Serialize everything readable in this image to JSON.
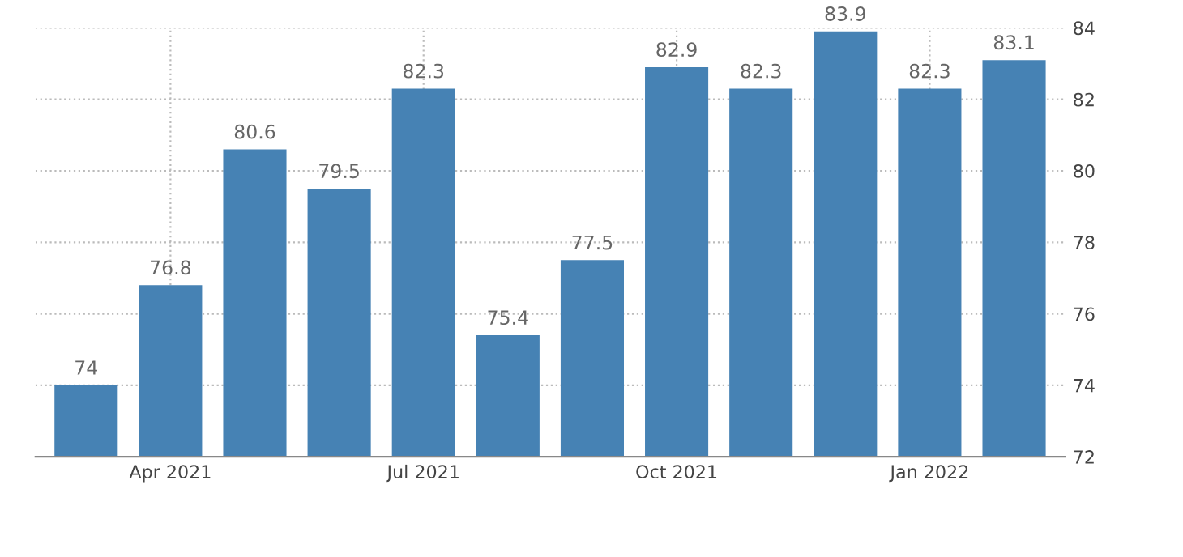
{
  "chart_data": {
    "type": "bar",
    "categories": [
      null,
      "Apr 2021",
      null,
      null,
      "Jul 2021",
      null,
      null,
      "Oct 2021",
      null,
      null,
      "Jan 2022",
      null
    ],
    "values": [
      74,
      76.8,
      80.6,
      79.5,
      82.3,
      75.4,
      77.5,
      82.9,
      82.3,
      83.9,
      82.3,
      83.1
    ],
    "color": "#4682b4",
    "ylim": [
      72,
      84
    ],
    "yticks": [
      72,
      74,
      76,
      78,
      80,
      82,
      84
    ],
    "grid": true,
    "data_labels": true
  }
}
